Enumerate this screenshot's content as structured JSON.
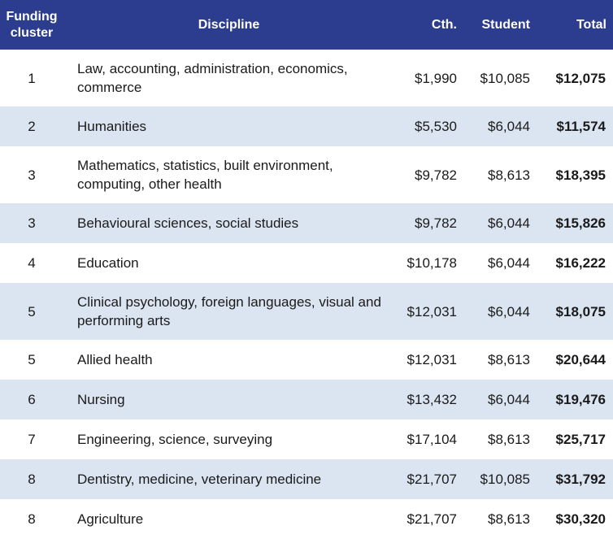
{
  "header": {
    "cluster": "Funding cluster",
    "discipline": "Discipline",
    "cth": "Cth.",
    "student": "Student",
    "total": "Total"
  },
  "colors": {
    "header_bg": "#2c3d8f",
    "header_text": "#ffffff",
    "alt_row_bg": "#dbe5f1"
  },
  "rows": [
    {
      "cluster": "1",
      "discipline": "Law, accounting, administration, economics, commerce",
      "cth": "$1,990",
      "student": "$10,085",
      "total": "$12,075"
    },
    {
      "cluster": "2",
      "discipline": "Humanities",
      "cth": "$5,530",
      "student": "$6,044",
      "total": "$11,574"
    },
    {
      "cluster": "3",
      "discipline": "Mathematics, statistics, built environment, computing, other health",
      "cth": "$9,782",
      "student": "$8,613",
      "total": "$18,395"
    },
    {
      "cluster": "3",
      "discipline": "Behavioural sciences, social studies",
      "cth": "$9,782",
      "student": "$6,044",
      "total": "$15,826"
    },
    {
      "cluster": "4",
      "discipline": "Education",
      "cth": "$10,178",
      "student": "$6,044",
      "total": "$16,222"
    },
    {
      "cluster": "5",
      "discipline": "Clinical psychology, foreign languages, visual and performing arts",
      "cth": "$12,031",
      "student": "$6,044",
      "total": "$18,075"
    },
    {
      "cluster": "5",
      "discipline": "Allied health",
      "cth": "$12,031",
      "student": "$8,613",
      "total": "$20,644"
    },
    {
      "cluster": "6",
      "discipline": "Nursing",
      "cth": "$13,432",
      "student": "$6,044",
      "total": "$19,476"
    },
    {
      "cluster": "7",
      "discipline": "Engineering, science, surveying",
      "cth": "$17,104",
      "student": "$8,613",
      "total": "$25,717"
    },
    {
      "cluster": "8",
      "discipline": "Dentistry, medicine, veterinary medicine",
      "cth": "$21,707",
      "student": "$10,085",
      "total": "$31,792"
    },
    {
      "cluster": "8",
      "discipline": "Agriculture",
      "cth": "$21,707",
      "student": "$8,613",
      "total": "$30,320"
    }
  ]
}
